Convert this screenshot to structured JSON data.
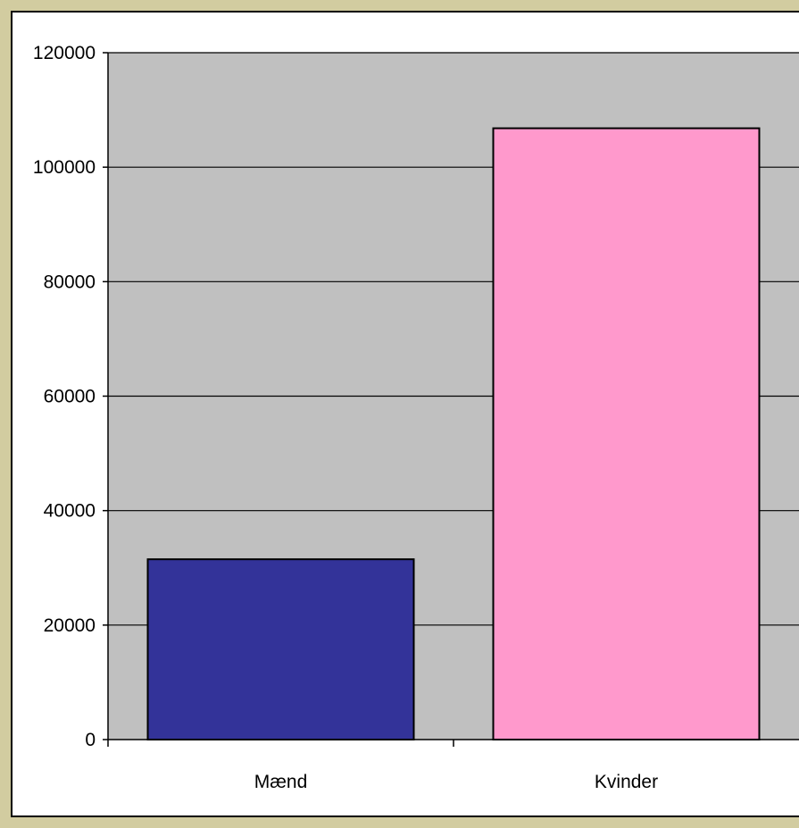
{
  "chart_data": {
    "type": "bar",
    "categories": [
      "Mænd",
      "Kvinder"
    ],
    "values": [
      31500,
      106800
    ],
    "colors": [
      "#333399",
      "#ff99cc"
    ],
    "ylim": [
      0,
      120000
    ],
    "yticks": [
      0,
      20000,
      40000,
      60000,
      80000,
      100000,
      120000
    ],
    "ytick_labels": [
      "0",
      "20000",
      "40000",
      "60000",
      "80000",
      "100000",
      "120000"
    ],
    "plot_background": "#c0c0c0",
    "grid": true,
    "legend": "none",
    "title": "",
    "xlabel": "",
    "ylabel": ""
  }
}
